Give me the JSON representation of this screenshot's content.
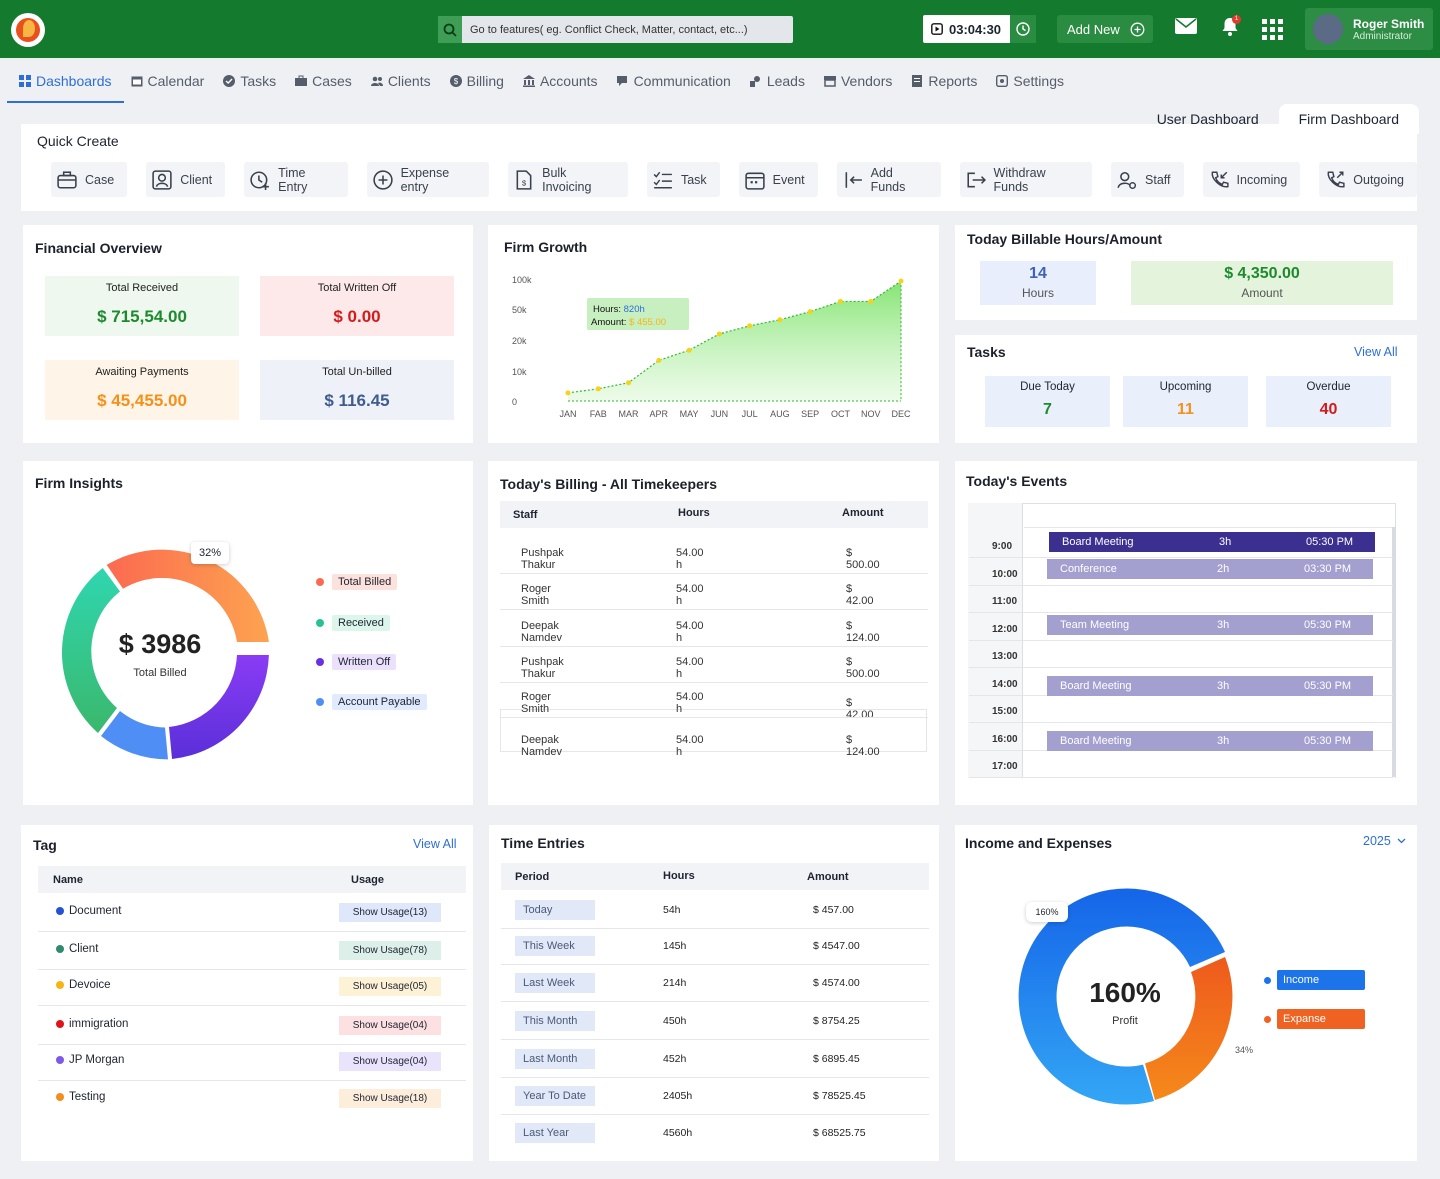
{
  "topbar": {
    "search_placeholder": "Go to features( eg. Conflict Check, Matter, contact, etc...)",
    "timer": "03:04:30",
    "add_new": "Add New",
    "user_name": "Roger Smith",
    "user_role": "Administrator",
    "notification_badge": "1"
  },
  "nav": [
    "Dashboards",
    "Calendar",
    "Tasks",
    "Cases",
    "Clients",
    "Billing",
    "Accounts",
    "Communication",
    "Leads",
    "Vendors",
    "Reports",
    "Settings"
  ],
  "dash_tabs": [
    "User Dashboard",
    "Firm Dashboard"
  ],
  "quick_create": {
    "title": "Quick Create",
    "buttons": [
      "Case",
      "Client",
      "Time Entry",
      "Expense entry",
      "Bulk Invoicing",
      "Task",
      "Event",
      "Add Funds",
      "Withdraw Funds",
      "Staff",
      "Incoming",
      "Outgoing"
    ]
  },
  "financial": {
    "title": "Financial Overview",
    "items": [
      {
        "label": "Total Received",
        "value": "$ 715,54.00",
        "color": "#1e8a2f",
        "bg": "#eef8ef"
      },
      {
        "label": "Total Written Off",
        "value": "$ 0.00",
        "color": "#d51a1a",
        "bg": "#fde9ea"
      },
      {
        "label": "Awaiting Payments",
        "value": "$ 45,455.00",
        "color": "#f5911a",
        "bg": "#fef5e8"
      },
      {
        "label": "Total Un-billed",
        "value": "$ 116.45",
        "color": "#3e5d8c",
        "bg": "#eef2f8"
      }
    ]
  },
  "firm_growth": {
    "title": "Firm Growth",
    "tooltip_hours_label": "Hours:",
    "tooltip_hours": "820h",
    "tooltip_amount_label": "Amount:",
    "tooltip_amount": "$ 455.00"
  },
  "chart_data": {
    "type": "area",
    "categories": [
      "JAN",
      "FAB",
      "MAR",
      "APR",
      "MAY",
      "JUN",
      "JUL",
      "AUG",
      "SEP",
      "OCT",
      "NOV",
      "DEC"
    ],
    "y_ticks": [
      "0",
      "10k",
      "20k",
      "50k",
      "100k"
    ],
    "values": [
      4,
      6,
      9,
      20,
      25,
      33,
      37,
      40,
      44,
      49,
      49,
      59
    ],
    "ylim": [
      0,
      63
    ]
  },
  "billable": {
    "title": "Today Billable Hours/Amount",
    "hours": "14",
    "hours_label": "Hours",
    "amount": "$ 4,350.00",
    "amount_label": "Amount"
  },
  "tasks": {
    "title": "Tasks",
    "view_all": "View All",
    "items": [
      {
        "label": "Due Today",
        "value": "7",
        "color": "#1e8a2f"
      },
      {
        "label": "Upcoming",
        "value": "11",
        "color": "#f5911a"
      },
      {
        "label": "Overdue",
        "value": "40",
        "color": "#d51a1a"
      }
    ]
  },
  "insights": {
    "title": "Firm Insights",
    "center_value": "$ 3986",
    "center_label": "Total Billed",
    "percent_label": "32%",
    "legend": [
      {
        "label": "Total Billed",
        "dot": "#fb6a50",
        "bg": "#fde1dc"
      },
      {
        "label": "Received",
        "dot": "#27c293",
        "bg": "#dcf6ec"
      },
      {
        "label": "Written Off",
        "dot": "#6a2fe0",
        "bg": "#ebe1fc"
      },
      {
        "label": "Account Payable",
        "dot": "#4f8ff5",
        "bg": "#e1ebfd"
      }
    ]
  },
  "billing": {
    "title": "Today's Billing - All Timekeepers",
    "headers": [
      "Staff",
      "Hours",
      "Amount"
    ],
    "rows": [
      [
        "Pushpak Thakur",
        "54.00 h",
        "$ 500.00"
      ],
      [
        "Roger Smith",
        "54.00 h",
        "$ 42.00"
      ],
      [
        "Deepak Namdev",
        "54.00 h",
        "$ 124.00"
      ],
      [
        "Pushpak Thakur",
        "54.00 h",
        "$ 500.00"
      ],
      [
        "Roger Smith",
        "54.00 h",
        "$ 42.00"
      ],
      [
        "Deepak Namdev",
        "54.00 h",
        "$ 124.00"
      ]
    ]
  },
  "events": {
    "title": "Today's Events",
    "times": [
      "9:00",
      "10:00",
      "11:00",
      "12:00",
      "13:00",
      "14:00",
      "15:00",
      "16:00",
      "17:00"
    ],
    "items": [
      {
        "name": "Board Meeting",
        "dur": "3h",
        "time": "05:30 PM",
        "color": "#3b2f8f"
      },
      {
        "name": "Conference",
        "dur": "2h",
        "time": "03:30 PM",
        "color": "#a39fcf"
      },
      {
        "name": "Team Meeting",
        "dur": "3h",
        "time": "05:30 PM",
        "color": "#a39fcf"
      },
      {
        "name": "Board Meeting",
        "dur": "3h",
        "time": "05:30 PM",
        "color": "#a39fcf"
      },
      {
        "name": "Board Meeting",
        "dur": "3h",
        "time": "05:30 PM",
        "color": "#a39fcf"
      }
    ]
  },
  "tag": {
    "title": "Tag",
    "view_all": "View All",
    "headers": [
      "Name",
      "Usage"
    ],
    "rows": [
      {
        "name": "Document",
        "usage": "Show Usage(13)",
        "dot": "#2551d6",
        "bg": "#dfe7fb"
      },
      {
        "name": "Client",
        "usage": "Show Usage(78)",
        "dot": "#2f8a6f",
        "bg": "#dcefe8"
      },
      {
        "name": "Devoice",
        "usage": "Show Usage(05)",
        "dot": "#f7b514",
        "bg": "#fdf2d5"
      },
      {
        "name": "immigration",
        "usage": "Show Usage(04)",
        "dot": "#e1131a",
        "bg": "#fde0e1"
      },
      {
        "name": "JP Morgan",
        "usage": "Show Usage(04)",
        "dot": "#7c5ae8",
        "bg": "#e9e3fc"
      },
      {
        "name": "Testing",
        "usage": "Show Usage(18)",
        "dot": "#f58c1c",
        "bg": "#fdeedc"
      }
    ]
  },
  "time_entries": {
    "title": "Time Entries",
    "headers": [
      "Period",
      "Hours",
      "Amount"
    ],
    "rows": [
      [
        "Today",
        "54h",
        "$ 457.00"
      ],
      [
        "This Week",
        "145h",
        "$ 4547.00"
      ],
      [
        "Last Week",
        "214h",
        "$ 4574.00"
      ],
      [
        "This Month",
        "450h",
        "$ 8754.25"
      ],
      [
        "Last Month",
        "452h",
        "$ 6895.45"
      ],
      [
        "Year To Date",
        "2405h",
        "$ 78525.45"
      ],
      [
        "Last Year",
        "4560h",
        "$ 68525.75"
      ]
    ]
  },
  "income": {
    "title": "Income and Expenses",
    "year": "2025",
    "center_value": "160%",
    "center_label": "Profit",
    "label_160": "160%",
    "label_34": "34%",
    "legend": [
      "Income",
      "Expanse"
    ]
  }
}
